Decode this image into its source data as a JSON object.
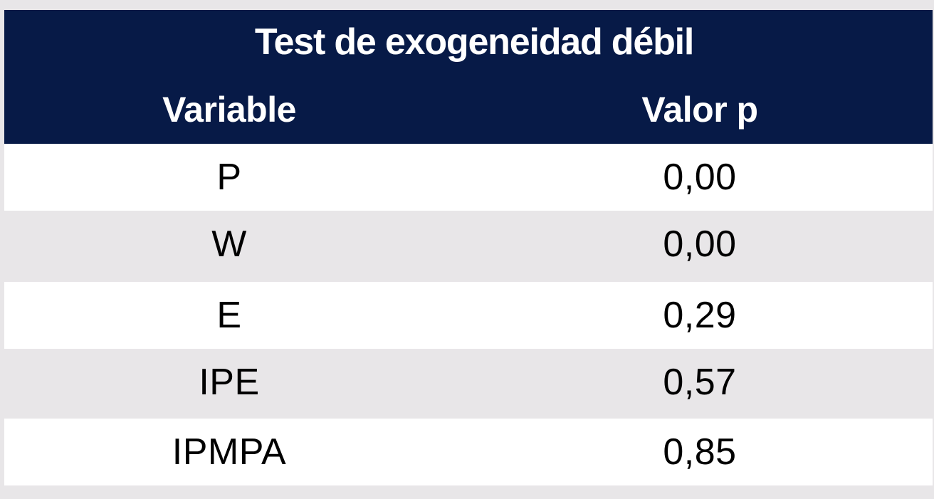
{
  "table": {
    "title": "Test de exogeneidad débil",
    "headers": {
      "variable": "Variable",
      "value": "Valor p"
    },
    "rows": [
      {
        "variable": "P",
        "value": "0,00"
      },
      {
        "variable": "W",
        "value": "0,00"
      },
      {
        "variable": "E",
        "value": "0,29"
      },
      {
        "variable": "IPE",
        "value": "0,57"
      },
      {
        "variable": "IPMPA",
        "value": "0,85"
      }
    ]
  },
  "colors": {
    "header_background": "#071a47",
    "header_text": "#ffffff",
    "row_white": "#ffffff",
    "row_gray": "#e8e6e8",
    "body_text": "#000000"
  }
}
